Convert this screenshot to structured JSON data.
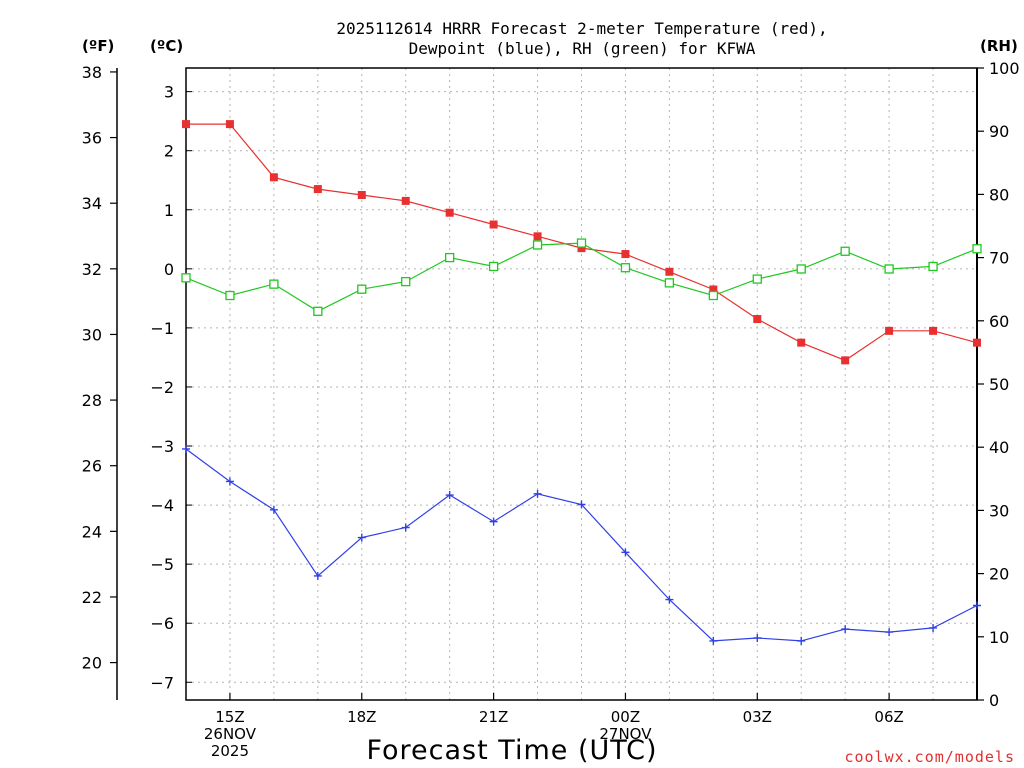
{
  "chart_data": {
    "type": "line",
    "title": "2025112614 HRRR Forecast 2-meter Temperature (red),",
    "subtitle": "Dewpoint (blue), RH (green) for KFWA",
    "xlabel": "Forecast Time (UTC)",
    "units": {
      "fahrenheit": "(ºF)",
      "celsius": "(ºC)",
      "rh": "(RH)"
    },
    "credit": "coolwx.com/models",
    "hours": [
      14,
      15,
      16,
      17,
      18,
      19,
      20,
      21,
      22,
      23,
      24,
      25,
      26,
      27,
      28,
      29,
      30,
      31,
      32
    ],
    "xlim": [
      14,
      32
    ],
    "x_ticks": [
      {
        "hour": 15,
        "lines": [
          "15Z",
          "26NOV",
          "2025"
        ]
      },
      {
        "hour": 18,
        "lines": [
          "18Z"
        ]
      },
      {
        "hour": 21,
        "lines": [
          "21Z"
        ]
      },
      {
        "hour": 24,
        "lines": [
          "00Z",
          "27NOV"
        ]
      },
      {
        "hour": 27,
        "lines": [
          "03Z"
        ]
      },
      {
        "hour": 30,
        "lines": [
          "06Z"
        ]
      }
    ],
    "celsius_axis": {
      "ylim": [
        -7.3,
        3.4
      ],
      "ticks": [
        3,
        2,
        1,
        0,
        -1,
        -2,
        -3,
        -4,
        -5,
        -6,
        -7
      ],
      "tick_labels": [
        "3",
        "2",
        "1",
        "0",
        "−1",
        "−2",
        "−3",
        "−4",
        "−5",
        "−6",
        "−7"
      ]
    },
    "fahrenheit_axis": {
      "ylim": [
        18.86,
        38.12
      ],
      "ticks": [
        38,
        36,
        34,
        32,
        30,
        28,
        26,
        24,
        22,
        20
      ],
      "tick_labels": [
        "38",
        "36",
        "34",
        "32",
        "30",
        "28",
        "26",
        "24",
        "22",
        "20"
      ]
    },
    "rh_axis": {
      "ylim": [
        0,
        100
      ],
      "ticks": [
        100,
        90,
        80,
        70,
        60,
        50,
        40,
        30,
        20,
        10,
        0
      ],
      "tick_labels": [
        "100",
        "90",
        "80",
        "70",
        "60",
        "50",
        "40",
        "30",
        "20",
        "10",
        "0"
      ]
    },
    "series": [
      {
        "name": "Temperature",
        "axis": "celsius",
        "color": "#e83030",
        "marker": "filled-square",
        "values": [
          2.45,
          2.45,
          1.55,
          1.35,
          1.25,
          1.15,
          0.95,
          0.75,
          0.55,
          0.35,
          0.25,
          -0.05,
          -0.35,
          -0.85,
          -1.25,
          -1.55,
          -1.05,
          -1.05,
          -1.25
        ]
      },
      {
        "name": "Dewpoint",
        "axis": "celsius",
        "color": "#3040e8",
        "marker": "plus",
        "values": [
          -3.05,
          -3.6,
          -4.08,
          -5.2,
          -4.55,
          -4.38,
          -3.83,
          -4.28,
          -3.81,
          -3.99,
          -4.8,
          -5.6,
          -6.3,
          -6.25,
          -6.3,
          -6.1,
          -6.15,
          -6.08,
          -5.7
        ]
      },
      {
        "name": "RH",
        "axis": "rh",
        "color": "#20c820",
        "marker": "open-square",
        "values": [
          66.8,
          64.0,
          65.8,
          61.5,
          65.0,
          66.2,
          70.0,
          68.6,
          72.0,
          72.3,
          68.4,
          66.0,
          64.0,
          66.6,
          68.2,
          71.0,
          68.2,
          68.6,
          71.4
        ]
      }
    ]
  }
}
